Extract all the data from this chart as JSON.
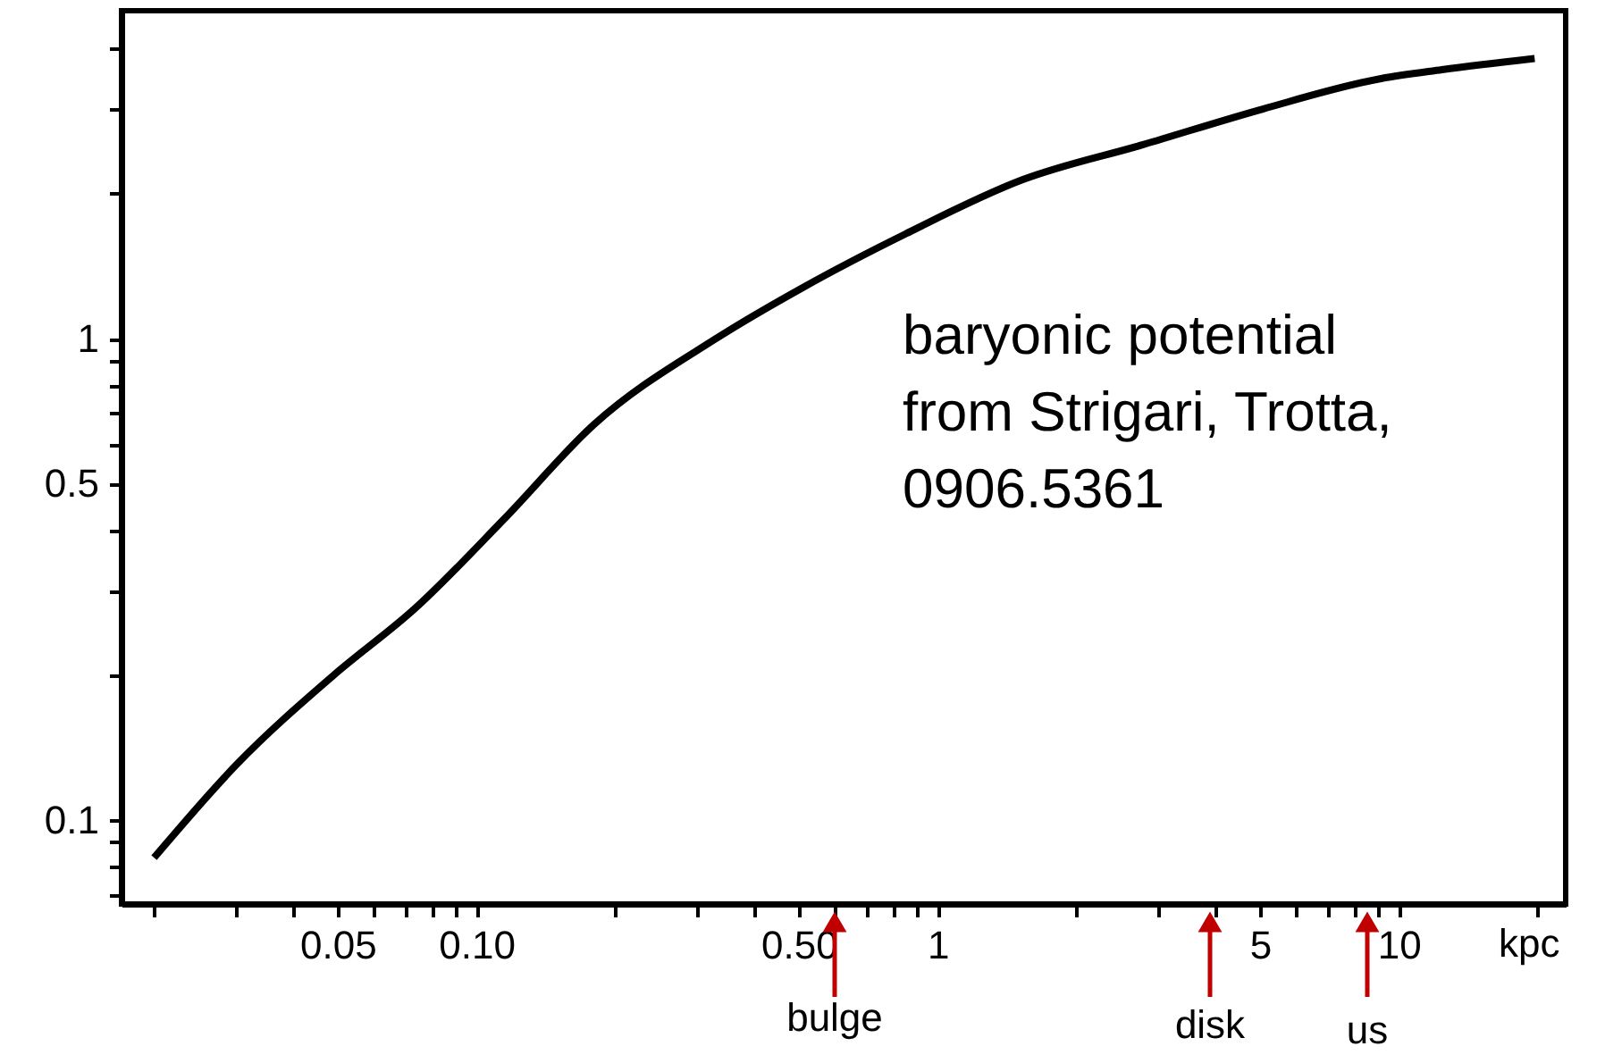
{
  "chart_data": {
    "type": "line",
    "xlabel": "kpc",
    "x": [
      0.02,
      0.0303,
      0.049,
      0.0738,
      0.115,
      0.18,
      0.328,
      0.512,
      0.851,
      1.53,
      2.79,
      5.07,
      9.15,
      12.4,
      19.7
    ],
    "series": [
      {
        "color": "#000000",
        "values": [
          0.0836,
          0.131,
          0.2,
          0.276,
          0.423,
          0.664,
          0.996,
          1.28,
          1.65,
          2.14,
          2.53,
          3.0,
          3.47,
          3.62,
          3.82
        ]
      }
    ],
    "log": "xy",
    "xlim": [
      0.017,
      23
    ],
    "ylim": [
      0.067,
      4.8
    ],
    "xticks": [
      {
        "value": 0.02,
        "label": null
      },
      {
        "value": 0.03,
        "label": null
      },
      {
        "value": 0.04,
        "label": null
      },
      0.05,
      {
        "value": 0.06,
        "label": null
      },
      {
        "value": 0.07,
        "label": null
      },
      {
        "value": 0.08,
        "label": null
      },
      {
        "value": 0.09,
        "label": null
      },
      {
        "value": 0.1,
        "label": "0.10"
      },
      {
        "value": 0.2,
        "label": null
      },
      {
        "value": 0.3,
        "label": null
      },
      {
        "value": 0.4,
        "label": null
      },
      {
        "value": 0.5,
        "label": "0.50"
      },
      {
        "value": 0.6,
        "label": null
      },
      {
        "value": 0.7,
        "label": null
      },
      {
        "value": 0.8,
        "label": null
      },
      {
        "value": 0.9,
        "label": null
      },
      1,
      {
        "value": 2,
        "label": null
      },
      {
        "value": 3,
        "label": null
      },
      {
        "value": 4,
        "label": null
      },
      5,
      {
        "value": 6,
        "label": null
      },
      {
        "value": 7,
        "label": null
      },
      {
        "value": 8,
        "label": null
      },
      {
        "value": 9,
        "label": null
      },
      10,
      {
        "value": 20,
        "label": null
      }
    ],
    "yticks": [
      {
        "value": 0.07,
        "label": null
      },
      {
        "value": 0.08,
        "label": null
      },
      {
        "value": 0.09,
        "label": null
      },
      0.1,
      {
        "value": 0.2,
        "label": null
      },
      {
        "value": 0.3,
        "label": null
      },
      {
        "value": 0.4,
        "label": null
      },
      0.5,
      {
        "value": 0.6,
        "label": null
      },
      {
        "value": 0.7,
        "label": null
      },
      {
        "value": 0.8,
        "label": null
      },
      {
        "value": 0.9,
        "label": null
      },
      1,
      {
        "value": 2,
        "label": null
      },
      {
        "value": 3,
        "label": null
      },
      {
        "value": 4,
        "label": null
      }
    ],
    "grid": false,
    "line_style": "solid",
    "annotations": [
      "baryonic potential\nfrom Strigari, Trotta,\n0906.5361",
      "bulge",
      "disk",
      "us"
    ]
  }
}
